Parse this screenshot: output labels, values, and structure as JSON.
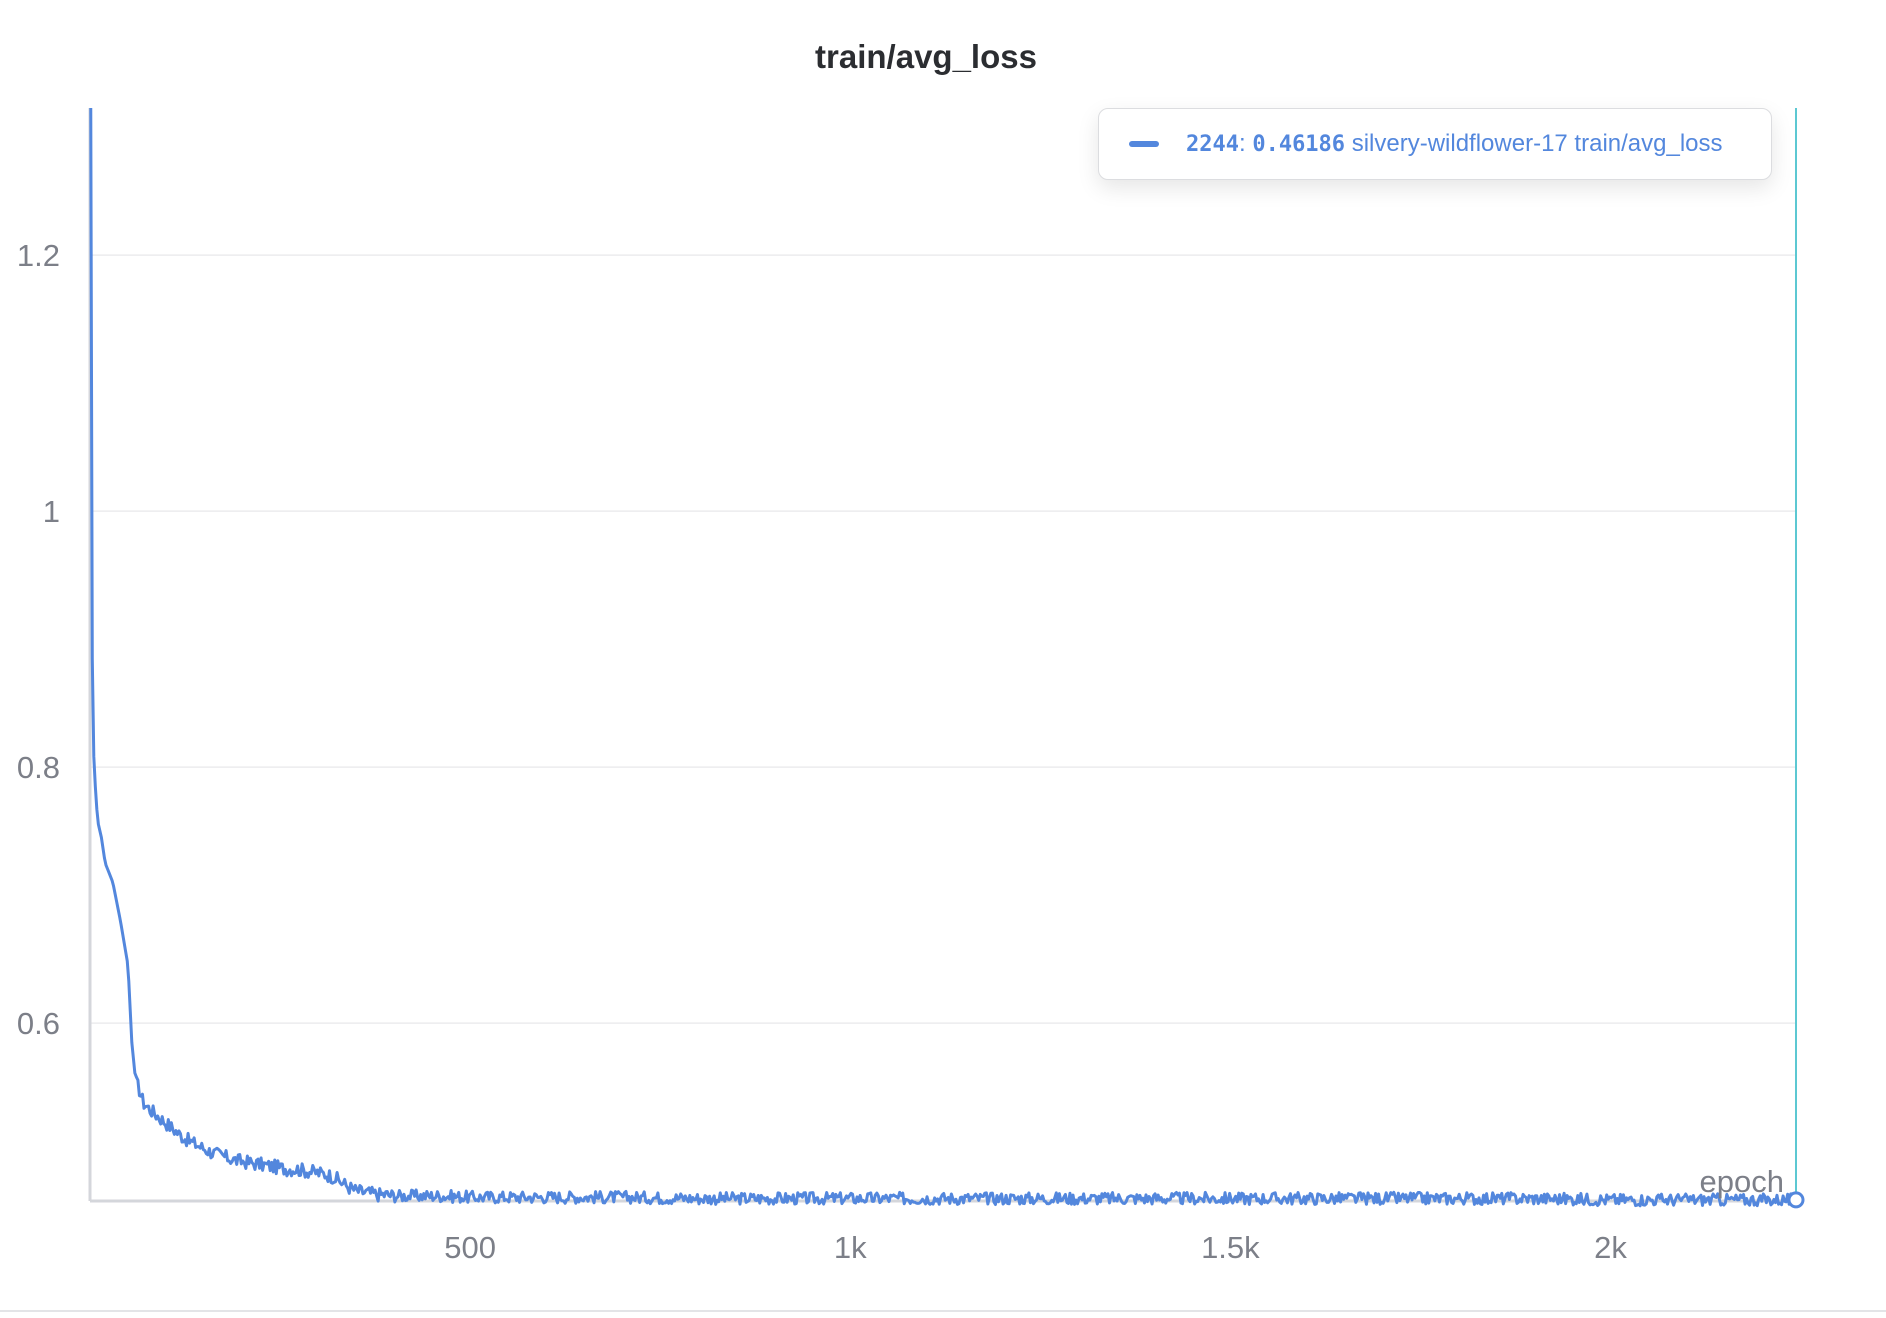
{
  "chart_data": {
    "type": "line",
    "title": "train/avg_loss",
    "xlabel": "epoch",
    "ylabel": "",
    "xlim": [
      0,
      2244
    ],
    "ylim": [
      0.461,
      1.315
    ],
    "x_ticks": [
      500,
      1000,
      1500,
      2000
    ],
    "x_tick_labels": [
      "500",
      "1k",
      "1.5k",
      "2k"
    ],
    "y_ticks": [
      0.6,
      0.8,
      1,
      1.2
    ],
    "y_tick_labels": [
      "0.6",
      "0.8",
      "1",
      "1.2"
    ],
    "grid": true,
    "legend_position": "top-right",
    "hover_step": 2244,
    "colors": {
      "series": "#5387dd",
      "hover_line": "#5cc8d2"
    },
    "series": [
      {
        "name": "silvery-wildflower-17 train/avg_loss",
        "x": [
          1,
          2,
          4,
          7,
          10,
          15,
          20,
          30,
          40,
          50,
          55,
          60,
          65,
          70,
          80,
          90,
          100,
          110,
          120,
          130,
          140,
          150,
          160,
          170,
          180,
          190,
          200,
          210,
          220,
          230,
          240,
          250,
          260,
          270,
          280,
          290,
          300,
          310,
          320,
          330,
          340,
          350,
          360,
          370,
          380,
          390,
          400,
          420,
          440,
          460,
          500,
          550,
          600,
          700,
          800,
          900,
          1000,
          1100,
          1200,
          1300,
          1400,
          1500,
          1600,
          1700,
          1800,
          1900,
          2000,
          2100,
          2200,
          2244
        ],
        "values": [
          1.315,
          0.95,
          0.82,
          0.785,
          0.758,
          0.745,
          0.725,
          0.71,
          0.68,
          0.645,
          0.585,
          0.555,
          0.548,
          0.538,
          0.532,
          0.527,
          0.522,
          0.517,
          0.512,
          0.508,
          0.505,
          0.502,
          0.499,
          0.497,
          0.495,
          0.493,
          0.492,
          0.491,
          0.49,
          0.489,
          0.488,
          0.487,
          0.486,
          0.486,
          0.485,
          0.484,
          0.483,
          0.482,
          0.48,
          0.476,
          0.472,
          0.469,
          0.468,
          0.467,
          0.466,
          0.466,
          0.465,
          0.465,
          0.465,
          0.465,
          0.464,
          0.464,
          0.464,
          0.464,
          0.463,
          0.463,
          0.463,
          0.463,
          0.463,
          0.463,
          0.463,
          0.463,
          0.463,
          0.463,
          0.463,
          0.463,
          0.462,
          0.462,
          0.462,
          0.46186
        ]
      }
    ]
  },
  "legend": {
    "step": "2244",
    "separator": ":",
    "value": "0.46186",
    "label": "silvery-wildflower-17 train/avg_loss"
  }
}
